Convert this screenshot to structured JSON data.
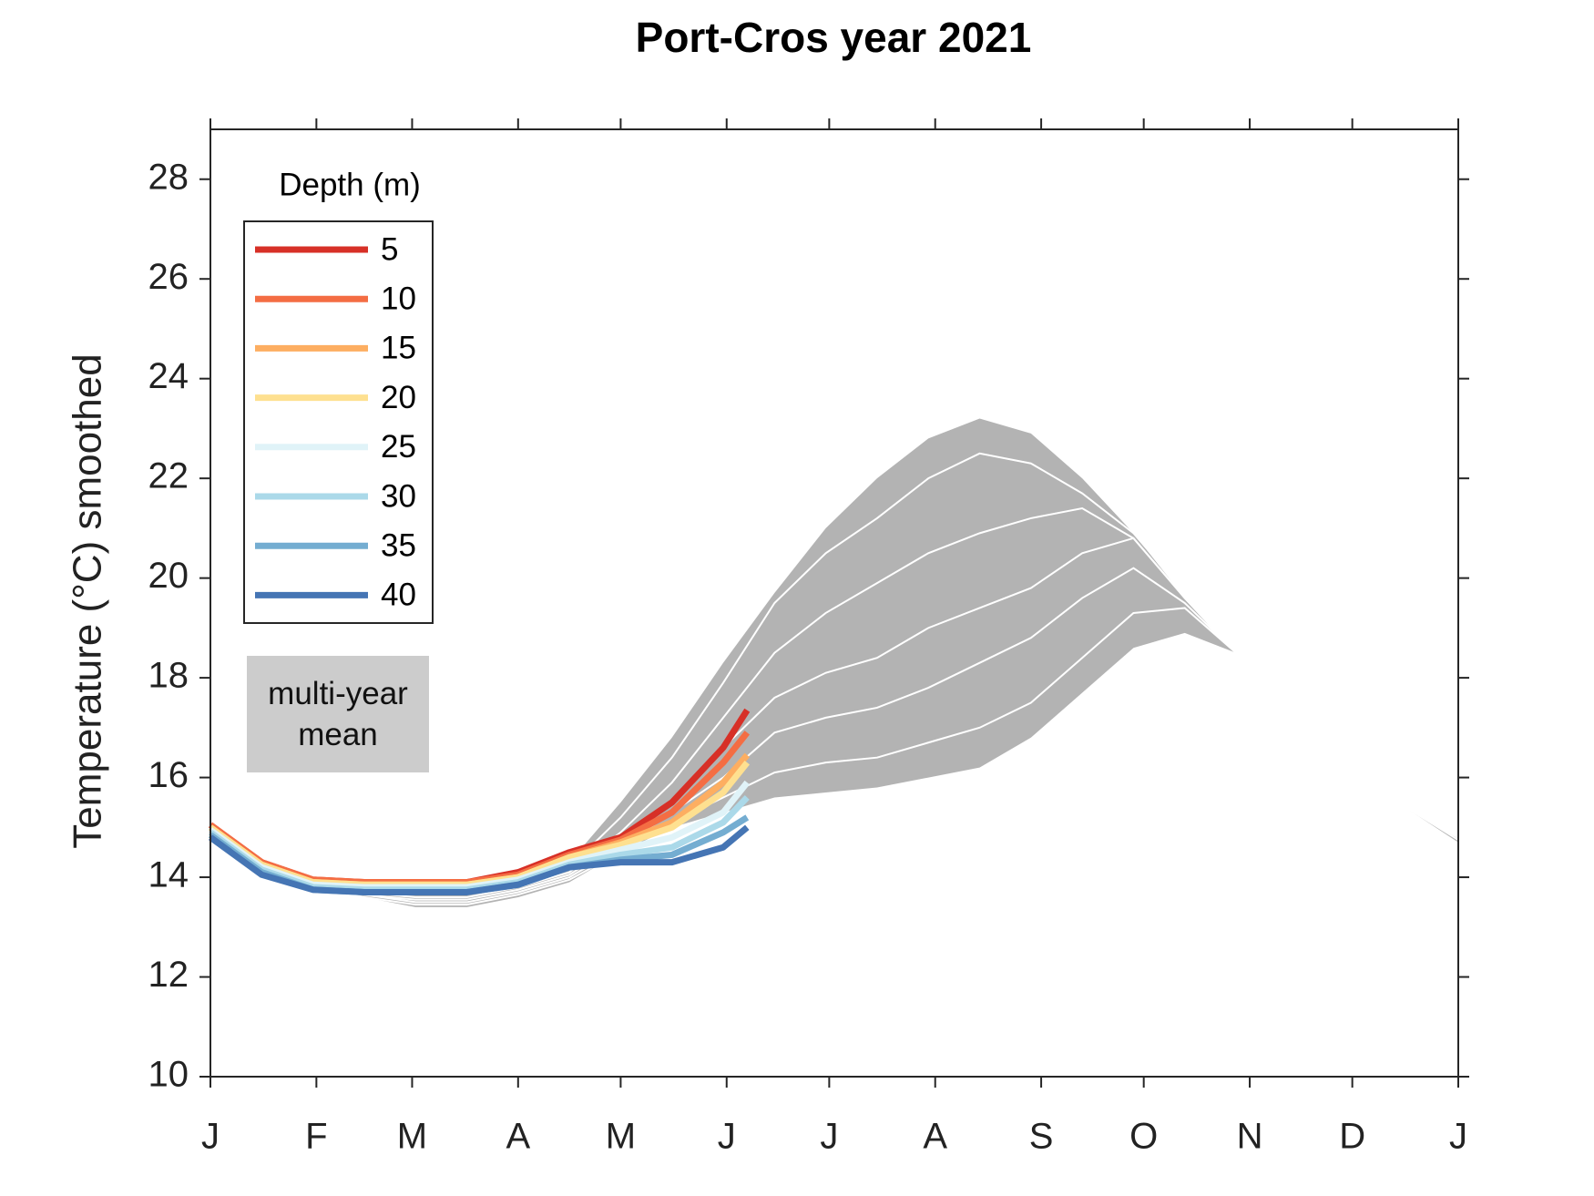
{
  "chart_data": {
    "type": "line",
    "title": "Port-Cros year 2021",
    "y_label": "Temperature (°C) smoothed",
    "legend_title": "Depth (m)",
    "xlim": [
      0,
      365
    ],
    "ylim": [
      10,
      29
    ],
    "xticks": [
      {
        "value": 0,
        "label": "J"
      },
      {
        "value": 31,
        "label": "F"
      },
      {
        "value": 59,
        "label": "M"
      },
      {
        "value": 90,
        "label": "A"
      },
      {
        "value": 120,
        "label": "M"
      },
      {
        "value": 151,
        "label": "J"
      },
      {
        "value": 181,
        "label": "J"
      },
      {
        "value": 212,
        "label": "A"
      },
      {
        "value": 243,
        "label": "S"
      },
      {
        "value": 273,
        "label": "O"
      },
      {
        "value": 304,
        "label": "N"
      },
      {
        "value": 334,
        "label": "D"
      },
      {
        "value": 365,
        "label": "J"
      }
    ],
    "yticks": [
      10,
      12,
      14,
      16,
      18,
      20,
      22,
      24,
      26,
      28
    ],
    "band": {
      "name": "multi-year mean",
      "color": "#b3b3b3",
      "line_color": "#ffffff",
      "x": [
        0,
        15,
        30,
        45,
        60,
        75,
        90,
        105,
        120,
        135,
        150,
        165,
        180,
        195,
        210,
        225,
        240,
        255,
        270,
        285,
        300,
        315,
        330,
        345,
        365
      ],
      "upper": [
        15.0,
        14.3,
        13.9,
        13.8,
        13.75,
        13.8,
        14.0,
        14.3,
        15.5,
        16.8,
        18.3,
        19.7,
        21.0,
        22.0,
        22.8,
        23.2,
        22.9,
        22.0,
        20.9,
        19.6,
        18.5,
        17.6,
        16.6,
        15.6,
        14.8
      ],
      "lower": [
        14.9,
        14.2,
        13.8,
        13.6,
        13.4,
        13.4,
        13.6,
        13.9,
        14.5,
        15.0,
        15.3,
        15.6,
        15.7,
        15.8,
        16.0,
        16.2,
        16.8,
        17.7,
        18.6,
        18.9,
        18.5,
        17.6,
        16.6,
        15.6,
        14.7
      ],
      "lines": [
        [
          15.0,
          14.3,
          13.9,
          13.75,
          13.7,
          13.7,
          13.9,
          14.2,
          15.2,
          16.4,
          17.9,
          19.5,
          20.5,
          21.2,
          22.0,
          22.5,
          22.3,
          21.7,
          20.9,
          19.7,
          18.5,
          17.6,
          16.6,
          15.6,
          14.8
        ],
        [
          15.0,
          14.3,
          13.9,
          13.7,
          13.6,
          13.6,
          13.8,
          14.1,
          14.9,
          15.9,
          17.2,
          18.5,
          19.3,
          19.9,
          20.5,
          20.9,
          21.2,
          21.4,
          20.8,
          19.6,
          18.5,
          17.6,
          16.6,
          15.6,
          14.8
        ],
        [
          14.95,
          14.25,
          13.85,
          13.65,
          13.55,
          13.55,
          13.75,
          14.05,
          14.7,
          15.5,
          16.6,
          17.6,
          18.1,
          18.4,
          19.0,
          19.4,
          19.8,
          20.5,
          20.8,
          19.6,
          18.5,
          17.6,
          16.6,
          15.6,
          14.8
        ],
        [
          14.95,
          14.25,
          13.85,
          13.65,
          13.5,
          13.5,
          13.7,
          14.0,
          14.6,
          15.3,
          16.0,
          16.9,
          17.2,
          17.4,
          17.8,
          18.3,
          18.8,
          19.6,
          20.2,
          19.5,
          18.5,
          17.6,
          16.6,
          15.6,
          14.8
        ],
        [
          14.9,
          14.2,
          13.8,
          13.6,
          13.45,
          13.45,
          13.65,
          13.95,
          14.5,
          15.1,
          15.6,
          16.1,
          16.3,
          16.4,
          16.7,
          17.0,
          17.5,
          18.4,
          19.3,
          19.4,
          18.5,
          17.6,
          16.6,
          15.6,
          14.75
        ]
      ]
    },
    "x": [
      0,
      15,
      30,
      45,
      60,
      75,
      90,
      105,
      120,
      135,
      150,
      157
    ],
    "series": [
      {
        "name": "5",
        "color": "#d73027",
        "values": [
          15.05,
          14.3,
          13.95,
          13.9,
          13.9,
          13.9,
          14.1,
          14.5,
          14.8,
          15.5,
          16.6,
          17.35
        ]
      },
      {
        "name": "10",
        "color": "#f46d43",
        "values": [
          15.05,
          14.3,
          13.95,
          13.9,
          13.9,
          13.9,
          14.05,
          14.45,
          14.75,
          15.3,
          16.3,
          16.9
        ]
      },
      {
        "name": "15",
        "color": "#fdae61",
        "values": [
          15.0,
          14.25,
          13.9,
          13.85,
          13.85,
          13.85,
          14.0,
          14.4,
          14.7,
          15.1,
          15.9,
          16.45
        ]
      },
      {
        "name": "20",
        "color": "#fee090",
        "values": [
          15.0,
          14.25,
          13.9,
          13.85,
          13.85,
          13.85,
          14.0,
          14.4,
          14.65,
          15.0,
          15.7,
          16.3
        ]
      },
      {
        "name": "25",
        "color": "#e0f3f8",
        "values": [
          14.95,
          14.2,
          13.85,
          13.8,
          13.8,
          13.8,
          13.95,
          14.3,
          14.55,
          14.8,
          15.3,
          15.9
        ]
      },
      {
        "name": "30",
        "color": "#abd9e9",
        "values": [
          14.9,
          14.15,
          13.8,
          13.75,
          13.75,
          13.75,
          13.9,
          14.25,
          14.45,
          14.6,
          15.1,
          15.6
        ]
      },
      {
        "name": "35",
        "color": "#74add1",
        "values": [
          14.85,
          14.1,
          13.75,
          13.7,
          13.7,
          13.7,
          13.85,
          14.2,
          14.35,
          14.45,
          14.9,
          15.2
        ]
      },
      {
        "name": "40",
        "color": "#4575b4",
        "values": [
          14.8,
          14.05,
          13.75,
          13.7,
          13.7,
          13.7,
          13.85,
          14.2,
          14.3,
          14.3,
          14.6,
          15.0
        ]
      }
    ]
  }
}
